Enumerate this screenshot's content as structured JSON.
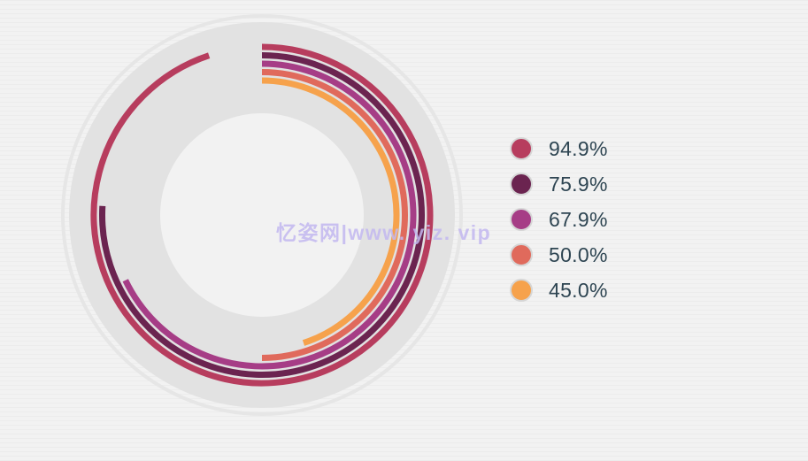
{
  "chart_data": {
    "type": "radial-bar",
    "series": [
      {
        "label": "94.9%",
        "value": 94.9,
        "color": "#b73d5e"
      },
      {
        "label": "75.9%",
        "value": 75.9,
        "color": "#6b2450"
      },
      {
        "label": "67.9%",
        "value": 67.9,
        "color": "#a63d86"
      },
      {
        "label": "50.0%",
        "value": 50.0,
        "color": "#e06a5c"
      },
      {
        "label": "45.0%",
        "value": 45.0,
        "color": "#f6a24c"
      }
    ],
    "max": 100,
    "legend_position": "right"
  },
  "watermark": "忆姿网|www. yiz. vip",
  "colors": {
    "background": "#f2f2f2",
    "track": "#e2e2e2",
    "outer_ring": "#e6e6e6",
    "center": "#f2f2f2",
    "legend_text": "#2e4552"
  }
}
